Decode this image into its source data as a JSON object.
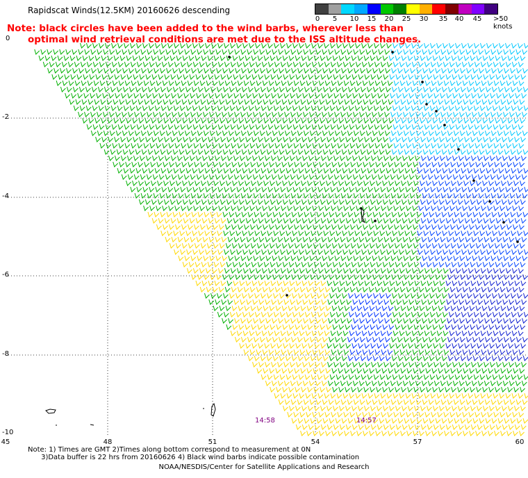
{
  "title": "Rapidscat Winds(12.5KM) 20160626 descending",
  "note_line1": "Note: black circles have been added to the wind barbs, wherever less than",
  "note_line2": "optimal wind retrieval conditions are met due to the ISS altitude changes.",
  "legend": {
    "labels": [
      "0",
      "5",
      "10",
      "15",
      "20",
      "25",
      "30",
      "35",
      "40",
      "45",
      ">50 knots"
    ],
    "colors": [
      "#404040",
      "#a0a0a0",
      "#00d8ff",
      "#00a8ff",
      "#0000ff",
      "#00c800",
      "#008000",
      "#ffff00",
      "#ffb000",
      "#ff0000",
      "#800000",
      "#c000c0",
      "#8000ff",
      "#400080"
    ]
  },
  "y_labels": [
    "0",
    "-2",
    "-4",
    "-6",
    "-8",
    "-10"
  ],
  "x_labels": [
    "45",
    "48",
    "51",
    "54",
    "57",
    "60"
  ],
  "times": [
    "14:58",
    "14:57"
  ],
  "footnote_line1": "Note: 1) Times are GMT 2)Times along bottom correspond to measurement at 0N",
  "footnote_line2": "3)Data buffer is 22 hrs from 20160626 4) Black wind barbs indicate possible contamination",
  "credit": "NOAA/NESDIS/Center for Satellite Applications and Research"
}
